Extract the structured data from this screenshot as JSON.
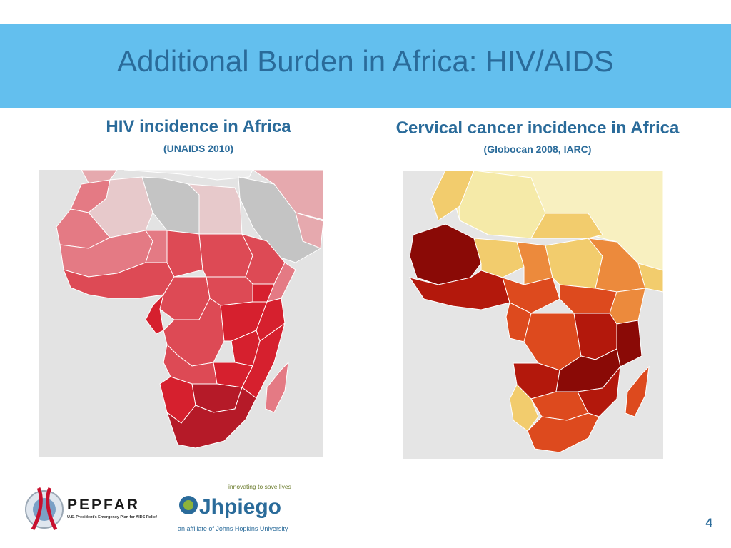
{
  "slide": {
    "title": "Additional Burden in Africa: HIV/AIDS",
    "page_number": "4"
  },
  "left_panel": {
    "heading": "HIV incidence in Africa",
    "source": "(UNAIDS 2010)"
  },
  "right_panel": {
    "heading": "Cervical cancer incidence in Africa",
    "source": "(Globocan 2008, IARC)"
  },
  "logos": {
    "pepfar_name": "PEPFAR",
    "pepfar_tagline": "U.S. President's Emergency Plan for AIDS Relief",
    "jhpiego_tagline": "innovating to save lives",
    "jhpiego_name": "Jhpiego",
    "jhpiego_affiliation": "an affiliate of Johns Hopkins University"
  },
  "colors": {
    "title_bar": "#63bfee",
    "title_text": "#2a6b9a",
    "hiv_scale": [
      "#e7c9cb",
      "#e47a84",
      "#dd4a55",
      "#d6202e",
      "#b51a28"
    ],
    "cc_scale": [
      "#f5eaa8",
      "#f2cc6d",
      "#ec8a3c",
      "#dd4a1e",
      "#b3180c",
      "#8a0a06"
    ]
  }
}
